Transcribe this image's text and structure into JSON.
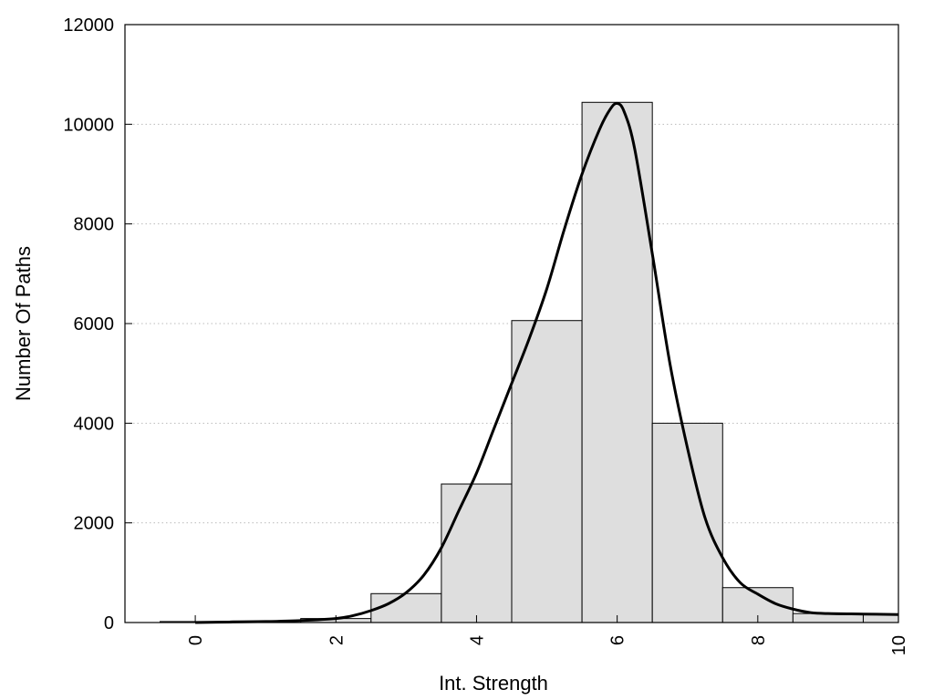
{
  "chart_data": {
    "type": "bar",
    "title": "",
    "xlabel": "Int. Strength",
    "ylabel": "Number Of Paths",
    "xlim": [
      -1,
      10
    ],
    "ylim": [
      0,
      12000
    ],
    "x_ticks": [
      0,
      2,
      4,
      6,
      8,
      10
    ],
    "y_ticks": [
      0,
      2000,
      4000,
      6000,
      8000,
      10000,
      12000
    ],
    "grid": "horizontal dotted",
    "legend": "none",
    "bar_color": "#dedede",
    "bar_edge_color": "#000000",
    "line_color": "#000000",
    "series": [
      {
        "type": "bar",
        "x": [
          0,
          1,
          2,
          3,
          4,
          5,
          6,
          7,
          8,
          9,
          10
        ],
        "values": [
          20,
          30,
          80,
          580,
          2780,
          6060,
          10440,
          4000,
          700,
          180,
          160
        ]
      },
      {
        "type": "line",
        "x": [
          0,
          0.5,
          1,
          1.5,
          2,
          2.25,
          2.5,
          2.75,
          3,
          3.25,
          3.5,
          3.75,
          4,
          4.25,
          4.5,
          4.75,
          5,
          5.25,
          5.5,
          5.75,
          5.9,
          6,
          6.1,
          6.25,
          6.5,
          6.75,
          7,
          7.25,
          7.5,
          7.75,
          8,
          8.25,
          8.5,
          8.75,
          9,
          9.5,
          10
        ],
        "values": [
          0,
          10,
          20,
          40,
          80,
          140,
          240,
          380,
          600,
          950,
          1500,
          2250,
          3000,
          3900,
          4800,
          5700,
          6700,
          7900,
          9000,
          9900,
          10300,
          10420,
          10250,
          9500,
          7400,
          5200,
          3500,
          2100,
          1300,
          800,
          570,
          380,
          270,
          200,
          180,
          170,
          160
        ]
      }
    ]
  }
}
